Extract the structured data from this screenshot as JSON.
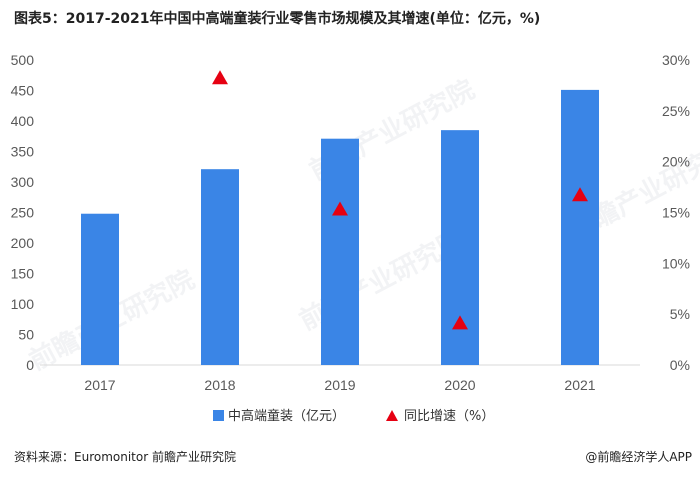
{
  "title": "图表5：2017-2021年中国中高端童装行业零售市场规模及其增速(单位：亿元，%)",
  "source_left": "资料来源：Euromonitor 前瞻产业研究院",
  "source_right": "@前瞻经济学人APP",
  "watermark": "前瞻产业研究院",
  "colors": {
    "bar": "#3a85e6",
    "marker": "#e60012",
    "axis": "#d9d9d9",
    "tick": "#595959"
  },
  "chart_data": {
    "type": "bar",
    "categories": [
      "2017",
      "2018",
      "2019",
      "2020",
      "2021"
    ],
    "series": [
      {
        "name": "中高端童装（亿元）",
        "type": "bar",
        "axis": "left",
        "values": [
          248,
          321,
          371,
          385,
          451
        ]
      },
      {
        "name": "同比增速（%）",
        "type": "scatter",
        "marker": "triangle",
        "axis": "right",
        "values": [
          null,
          28.2,
          15.3,
          4.1,
          16.7
        ]
      }
    ],
    "ylim": [
      0,
      500
    ],
    "yticks": [
      "0",
      "50",
      "100",
      "150",
      "200",
      "250",
      "300",
      "350",
      "400",
      "450",
      "500"
    ],
    "y2lim": [
      0,
      30
    ],
    "y2ticks": [
      "0%",
      "5%",
      "10%",
      "15%",
      "20%",
      "25%",
      "30%"
    ],
    "legend": "bottom",
    "grid": false
  }
}
